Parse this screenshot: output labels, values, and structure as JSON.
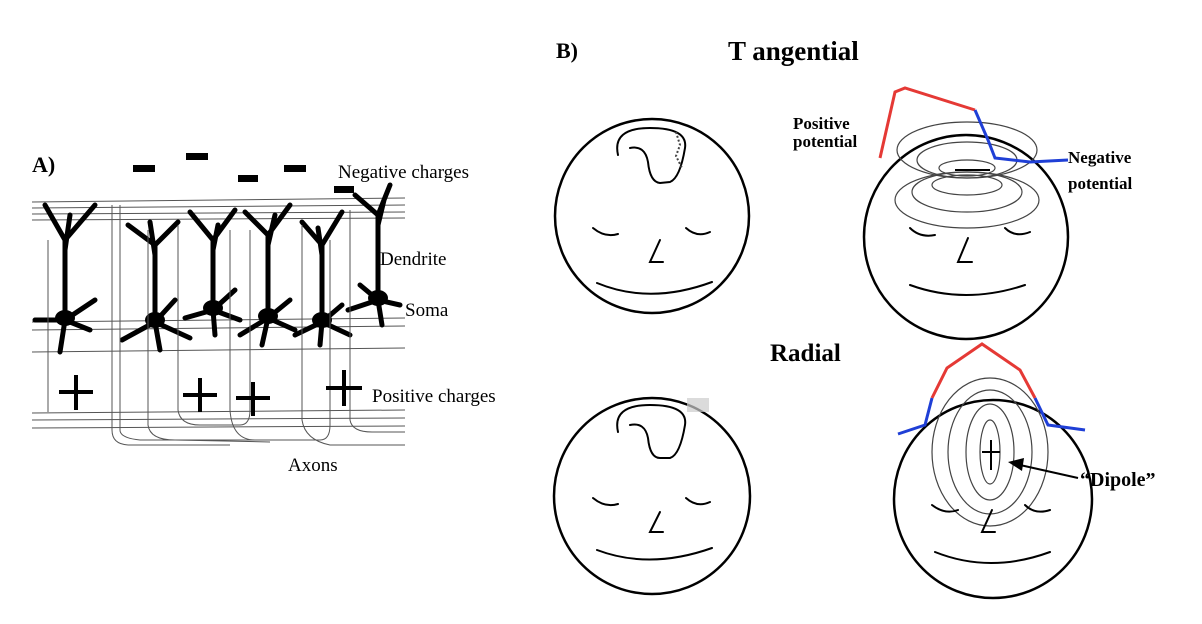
{
  "panel_a": {
    "label": "A)",
    "negative_charges": "Negative charges",
    "dendrite": "Dendrite",
    "soma": "Soma",
    "positive_charges": "Positive charges",
    "axons": "Axons",
    "minus_symbol": "−",
    "plus_symbol": "+"
  },
  "panel_b": {
    "label": "B)",
    "tangential": "T angential",
    "radial": "Radial",
    "positive_potential_line1": "Positive",
    "positive_potential_line2": "potential",
    "negative_potential_line1": "Negative",
    "negative_potential_line2": "potential",
    "dipole": "“Dipole”"
  },
  "colors": {
    "positive_trace": "#e53935",
    "negative_trace": "#1f3fd6",
    "ink": "#000000"
  }
}
